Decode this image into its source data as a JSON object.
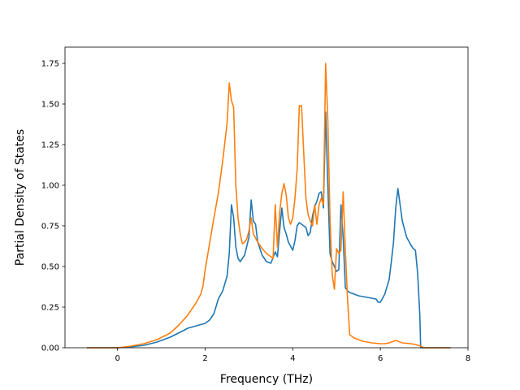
{
  "colors": {
    "series_1": "#1f77b4",
    "series_2": "#ff7f0e"
  },
  "chart_data": {
    "type": "line",
    "title": "",
    "xlabel": "Frequency (THz)",
    "ylabel": "Partial Density of States",
    "xlim": [
      -1.2,
      8.0
    ],
    "ylim": [
      0.0,
      1.85
    ],
    "xticks": [
      0,
      2,
      4,
      6,
      8
    ],
    "xtick_labels": [
      "0",
      "2",
      "4",
      "6",
      "8"
    ],
    "yticks": [
      0.0,
      0.25,
      0.5,
      0.75,
      1.0,
      1.25,
      1.5,
      1.75
    ],
    "ytick_labels": [
      "0.00",
      "0.25",
      "0.50",
      "0.75",
      "1.00",
      "1.25",
      "1.50",
      "1.75"
    ],
    "grid": false,
    "legend": "none",
    "series": [
      {
        "color": "#1f77b4",
        "x": [
          -0.7,
          -0.3,
          0.0,
          0.3,
          0.6,
          0.9,
          1.2,
          1.5,
          1.6,
          1.8,
          2.0,
          2.1,
          2.2,
          2.3,
          2.4,
          2.5,
          2.55,
          2.6,
          2.65,
          2.7,
          2.75,
          2.8,
          2.9,
          3.0,
          3.05,
          3.1,
          3.15,
          3.2,
          3.3,
          3.4,
          3.5,
          3.6,
          3.65,
          3.7,
          3.75,
          3.8,
          3.85,
          3.9,
          4.0,
          4.05,
          4.1,
          4.15,
          4.2,
          4.3,
          4.35,
          4.4,
          4.45,
          4.5,
          4.55,
          4.6,
          4.65,
          4.7,
          4.75,
          4.8,
          4.85,
          4.9,
          4.95,
          5.0,
          5.05,
          5.1,
          5.15,
          5.2,
          5.25,
          5.3,
          5.5,
          5.7,
          5.9,
          5.95,
          6.0,
          6.1,
          6.2,
          6.25,
          6.3,
          6.35,
          6.4,
          6.5,
          6.6,
          6.7,
          6.75,
          6.8,
          6.85,
          6.9,
          6.92,
          7.0,
          7.6
        ],
        "y": [
          0.0,
          0.0,
          0.0,
          0.005,
          0.015,
          0.035,
          0.065,
          0.105,
          0.12,
          0.135,
          0.15,
          0.17,
          0.21,
          0.3,
          0.35,
          0.44,
          0.58,
          0.88,
          0.8,
          0.62,
          0.55,
          0.53,
          0.57,
          0.68,
          0.91,
          0.78,
          0.76,
          0.65,
          0.57,
          0.53,
          0.52,
          0.59,
          0.56,
          0.72,
          0.86,
          0.74,
          0.7,
          0.65,
          0.6,
          0.66,
          0.75,
          0.77,
          0.76,
          0.74,
          0.69,
          0.71,
          0.81,
          0.87,
          0.9,
          0.95,
          0.96,
          0.86,
          1.45,
          1.0,
          0.58,
          0.53,
          0.5,
          0.47,
          0.48,
          0.88,
          0.68,
          0.37,
          0.35,
          0.34,
          0.32,
          0.31,
          0.3,
          0.28,
          0.28,
          0.33,
          0.42,
          0.53,
          0.65,
          0.86,
          0.98,
          0.78,
          0.68,
          0.63,
          0.61,
          0.6,
          0.46,
          0.2,
          0.0,
          0.0,
          0.0
        ]
      },
      {
        "color": "#ff7f0e",
        "x": [
          -0.7,
          -0.3,
          0.0,
          0.3,
          0.6,
          0.9,
          1.2,
          1.4,
          1.6,
          1.8,
          1.9,
          1.95,
          2.0,
          2.1,
          2.2,
          2.3,
          2.4,
          2.5,
          2.55,
          2.6,
          2.65,
          2.7,
          2.75,
          2.8,
          2.85,
          2.9,
          2.95,
          3.0,
          3.05,
          3.1,
          3.2,
          3.3,
          3.4,
          3.5,
          3.55,
          3.6,
          3.65,
          3.7,
          3.75,
          3.8,
          3.85,
          3.9,
          3.95,
          4.0,
          4.05,
          4.1,
          4.15,
          4.2,
          4.25,
          4.3,
          4.35,
          4.4,
          4.45,
          4.5,
          4.55,
          4.6,
          4.65,
          4.7,
          4.75,
          4.8,
          4.85,
          4.9,
          4.95,
          5.0,
          5.05,
          5.1,
          5.15,
          5.2,
          5.25,
          5.3,
          5.4,
          5.6,
          5.8,
          6.0,
          6.1,
          6.2,
          6.3,
          6.35,
          6.4,
          6.5,
          6.7,
          6.8,
          6.9,
          7.0,
          7.6
        ],
        "y": [
          0.0,
          0.0,
          0.0,
          0.01,
          0.025,
          0.05,
          0.09,
          0.14,
          0.2,
          0.28,
          0.33,
          0.38,
          0.48,
          0.64,
          0.8,
          0.95,
          1.15,
          1.38,
          1.63,
          1.52,
          1.48,
          1.0,
          0.8,
          0.7,
          0.64,
          0.65,
          0.67,
          0.72,
          0.8,
          0.7,
          0.65,
          0.61,
          0.58,
          0.56,
          0.55,
          0.88,
          0.62,
          0.83,
          0.95,
          1.01,
          0.94,
          0.8,
          0.76,
          0.8,
          0.92,
          1.1,
          1.49,
          1.49,
          1.2,
          0.92,
          0.82,
          0.78,
          0.75,
          0.88,
          0.76,
          0.88,
          0.92,
          0.88,
          1.75,
          1.4,
          0.8,
          0.45,
          0.36,
          0.61,
          0.58,
          0.6,
          0.96,
          0.6,
          0.3,
          0.08,
          0.06,
          0.04,
          0.03,
          0.025,
          0.025,
          0.03,
          0.04,
          0.045,
          0.04,
          0.03,
          0.025,
          0.02,
          0.012,
          0.0,
          0.0
        ]
      }
    ]
  }
}
